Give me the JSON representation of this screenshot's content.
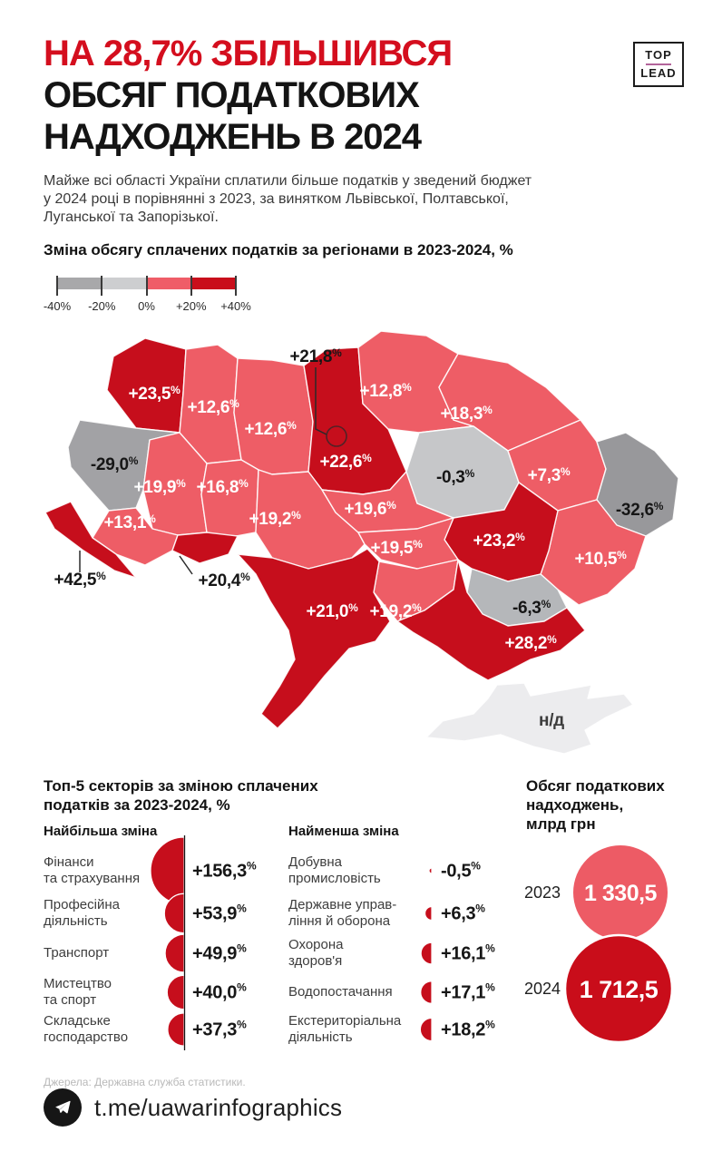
{
  "header": {
    "title_line1": "НА 28,7% ЗБІЛЬШИВСЯ",
    "title_line2": "ОБСЯГ ПОДАТКОВИХ",
    "title_line3": "НАДХОДЖЕНЬ В 2024",
    "logo": {
      "top": "TOP",
      "lead": "LEAD",
      "divider_color": "#b3649b"
    }
  },
  "intro": "Майже всі області України сплатили більше податків у зведений бюджет\nу 2024 році в порівнянні з 2023, за винятком Львівської, Полтавської,\nЛуганської та Запорізької.",
  "percent_sign": "%",
  "map_section": {
    "title": "Зміна обсягу сплачених податків за регіонами в 2023-2024, %",
    "legend": {
      "tick_labels": [
        "-40%",
        "-20%",
        "0%",
        "+20%",
        "+40%"
      ],
      "segment_colors": [
        "#a8a8aa",
        "#cdced0",
        "#ef5d68",
        "#c90e1b"
      ]
    },
    "palette": {
      "strong_up": "#c60e1c",
      "up": "#ee5d66",
      "down_light": "#c6c7c9",
      "down_dark": "#a2a2a5",
      "nodata": "#ececee"
    },
    "regions": [
      {
        "id": "volyn",
        "value": "+23,5",
        "suffix": "%",
        "band": "strong_up"
      },
      {
        "id": "rivne",
        "value": "+12,6",
        "suffix": "%",
        "band": "up"
      },
      {
        "id": "zhytomyr",
        "value": "+12,6",
        "suffix": "%",
        "band": "up"
      },
      {
        "id": "kyiv-city",
        "value": "+21,8",
        "suffix": "%",
        "band": "strong_up"
      },
      {
        "id": "kyiv-oblast",
        "value": "+22,6",
        "suffix": "%",
        "band": "strong_up"
      },
      {
        "id": "chernihiv",
        "value": "+12,8",
        "suffix": "%",
        "band": "up"
      },
      {
        "id": "sumy",
        "value": "+18,3",
        "suffix": "%",
        "band": "up"
      },
      {
        "id": "lviv",
        "value": "-29,0",
        "suffix": "%",
        "band": "down_dark"
      },
      {
        "id": "ternopil",
        "value": "+19,9",
        "suffix": "%",
        "band": "up"
      },
      {
        "id": "khmelnytskyi",
        "value": "+16,8",
        "suffix": "%",
        "band": "up"
      },
      {
        "id": "ivano-frankivsk",
        "value": "+13,1",
        "suffix": "%",
        "band": "up"
      },
      {
        "id": "zakarpattia",
        "value": "+42,5",
        "suffix": "%",
        "band": "strong_up"
      },
      {
        "id": "chernivtsi",
        "value": "+20,4",
        "suffix": "%",
        "band": "strong_up"
      },
      {
        "id": "vinnytsia",
        "value": "+19,2",
        "suffix": "%",
        "band": "up"
      },
      {
        "id": "cherkasy",
        "value": "+19,6",
        "suffix": "%",
        "band": "up"
      },
      {
        "id": "poltava",
        "value": "-0,3",
        "suffix": "%",
        "band": "down_light"
      },
      {
        "id": "kharkiv",
        "value": "+7,3",
        "suffix": "%",
        "band": "up"
      },
      {
        "id": "luhansk",
        "value": "-32,6",
        "suffix": "%",
        "band": "down_dark",
        "fill_override": "#98989b"
      },
      {
        "id": "donetsk",
        "value": "+10,5",
        "suffix": "%",
        "band": "up"
      },
      {
        "id": "dnipropetrovsk",
        "value": "+23,2",
        "suffix": "%",
        "band": "strong_up"
      },
      {
        "id": "zaporizhzhia",
        "value": "-6,3",
        "suffix": "%",
        "band": "down_light",
        "fill_override": "#b5b7ba"
      },
      {
        "id": "kirovohrad",
        "value": "+19,5",
        "suffix": "%",
        "band": "up"
      },
      {
        "id": "mykolaiv",
        "value": "+19,2",
        "suffix": "%",
        "band": "up"
      },
      {
        "id": "odesa",
        "value": "+21,0",
        "suffix": "%",
        "band": "strong_up"
      },
      {
        "id": "kherson",
        "value": "+28,2",
        "suffix": "%",
        "band": "strong_up"
      },
      {
        "id": "crimea",
        "value": "н/д",
        "suffix": "",
        "band": "nodata"
      }
    ]
  },
  "top_sectors": {
    "title": "Топ-5 секторів за зміною сплачених\nподатків за 2023-2024, %",
    "disc_color": "#c60e1c",
    "biggest": {
      "heading": "Найбільша зміна",
      "items": [
        {
          "label": "Фінанси\nта страхування",
          "value": "+156,3",
          "num": 156.3
        },
        {
          "label": "Професійна\nдіяльність",
          "value": "+53,9",
          "num": 53.9
        },
        {
          "label": "Транспорт",
          "value": "+49,9",
          "num": 49.9
        },
        {
          "label": "Мистецтво\nта спорт",
          "value": "+40,0",
          "num": 40.0
        },
        {
          "label": "Складське\nгосподарство",
          "value": "+37,3",
          "num": 37.3
        }
      ]
    },
    "smallest": {
      "heading": "Найменша зміна",
      "items": [
        {
          "label": "Добувна\nпромисловість",
          "value": "-0,5",
          "num": -0.5
        },
        {
          "label": "Державне управ-\nління й оборона",
          "value": "+6,3",
          "num": 6.3
        },
        {
          "label": "Охорона\nздоров'я",
          "value": "+16,1",
          "num": 16.1
        },
        {
          "label": "Водопостачання",
          "value": "+17,1",
          "num": 17.1
        },
        {
          "label": "Екстериторіальна\nдіяльність",
          "value": "+18,2",
          "num": 18.2
        }
      ]
    }
  },
  "revenue": {
    "title": "Обсяг податкових\nнадходжень,\nмлрд грн",
    "items": [
      {
        "year": "2023",
        "value": "1 330,5",
        "num": 1330.5,
        "color": "#ed5b65"
      },
      {
        "year": "2024",
        "value": "1 712,5",
        "num": 1712.5,
        "color": "#c90d1a"
      }
    ]
  },
  "footer": {
    "source": "Джерела: Державна служба статистики.",
    "telegram": "t.me/uawarinfographics"
  },
  "chart_data": [
    {
      "type": "heatmap",
      "subtype": "choropleth-map-of-ukraine",
      "title": "Зміна обсягу сплачених податків за регіонами в 2023-2024, %",
      "unit": "%",
      "legend_range": [
        -40,
        40
      ],
      "regions": [
        {
          "name": "volyn",
          "value": 23.5
        },
        {
          "name": "rivne",
          "value": 12.6
        },
        {
          "name": "zhytomyr",
          "value": 12.6
        },
        {
          "name": "kyiv-city",
          "value": 21.8
        },
        {
          "name": "kyiv-oblast",
          "value": 22.6
        },
        {
          "name": "chernihiv",
          "value": 12.8
        },
        {
          "name": "sumy",
          "value": 18.3
        },
        {
          "name": "lviv",
          "value": -29.0
        },
        {
          "name": "ternopil",
          "value": 19.9
        },
        {
          "name": "khmelnytskyi",
          "value": 16.8
        },
        {
          "name": "ivano-frankivsk",
          "value": 13.1
        },
        {
          "name": "zakarpattia",
          "value": 42.5
        },
        {
          "name": "chernivtsi",
          "value": 20.4
        },
        {
          "name": "vinnytsia",
          "value": 19.2
        },
        {
          "name": "cherkasy",
          "value": 19.6
        },
        {
          "name": "poltava",
          "value": -0.3
        },
        {
          "name": "kharkiv",
          "value": 7.3
        },
        {
          "name": "luhansk",
          "value": -32.6
        },
        {
          "name": "donetsk",
          "value": 10.5
        },
        {
          "name": "dnipropetrovsk",
          "value": 23.2
        },
        {
          "name": "zaporizhzhia",
          "value": -6.3
        },
        {
          "name": "kirovohrad",
          "value": 19.5
        },
        {
          "name": "mykolaiv",
          "value": 19.2
        },
        {
          "name": "odesa",
          "value": 21.0
        },
        {
          "name": "kherson",
          "value": 28.2
        },
        {
          "name": "crimea",
          "value": null
        }
      ]
    },
    {
      "type": "bar",
      "title": "Найбільша зміна",
      "categories": [
        "Фінанси та страхування",
        "Професійна діяльність",
        "Транспорт",
        "Мистецтво та спорт",
        "Складське господарство"
      ],
      "values": [
        156.3,
        53.9,
        49.9,
        40.0,
        37.3
      ],
      "unit": "%"
    },
    {
      "type": "bar",
      "title": "Найменша зміна",
      "categories": [
        "Добувна промисловість",
        "Державне управління й оборона",
        "Охорона здоров'я",
        "Водопостачання",
        "Екстериторіальна діяльність"
      ],
      "values": [
        -0.5,
        6.3,
        16.1,
        17.1,
        18.2
      ],
      "unit": "%"
    },
    {
      "type": "pie",
      "subtype": "proportional-circles",
      "title": "Обсяг податкових надходжень, млрд грн",
      "categories": [
        "2023",
        "2024"
      ],
      "values": [
        1330.5,
        1712.5
      ]
    }
  ]
}
